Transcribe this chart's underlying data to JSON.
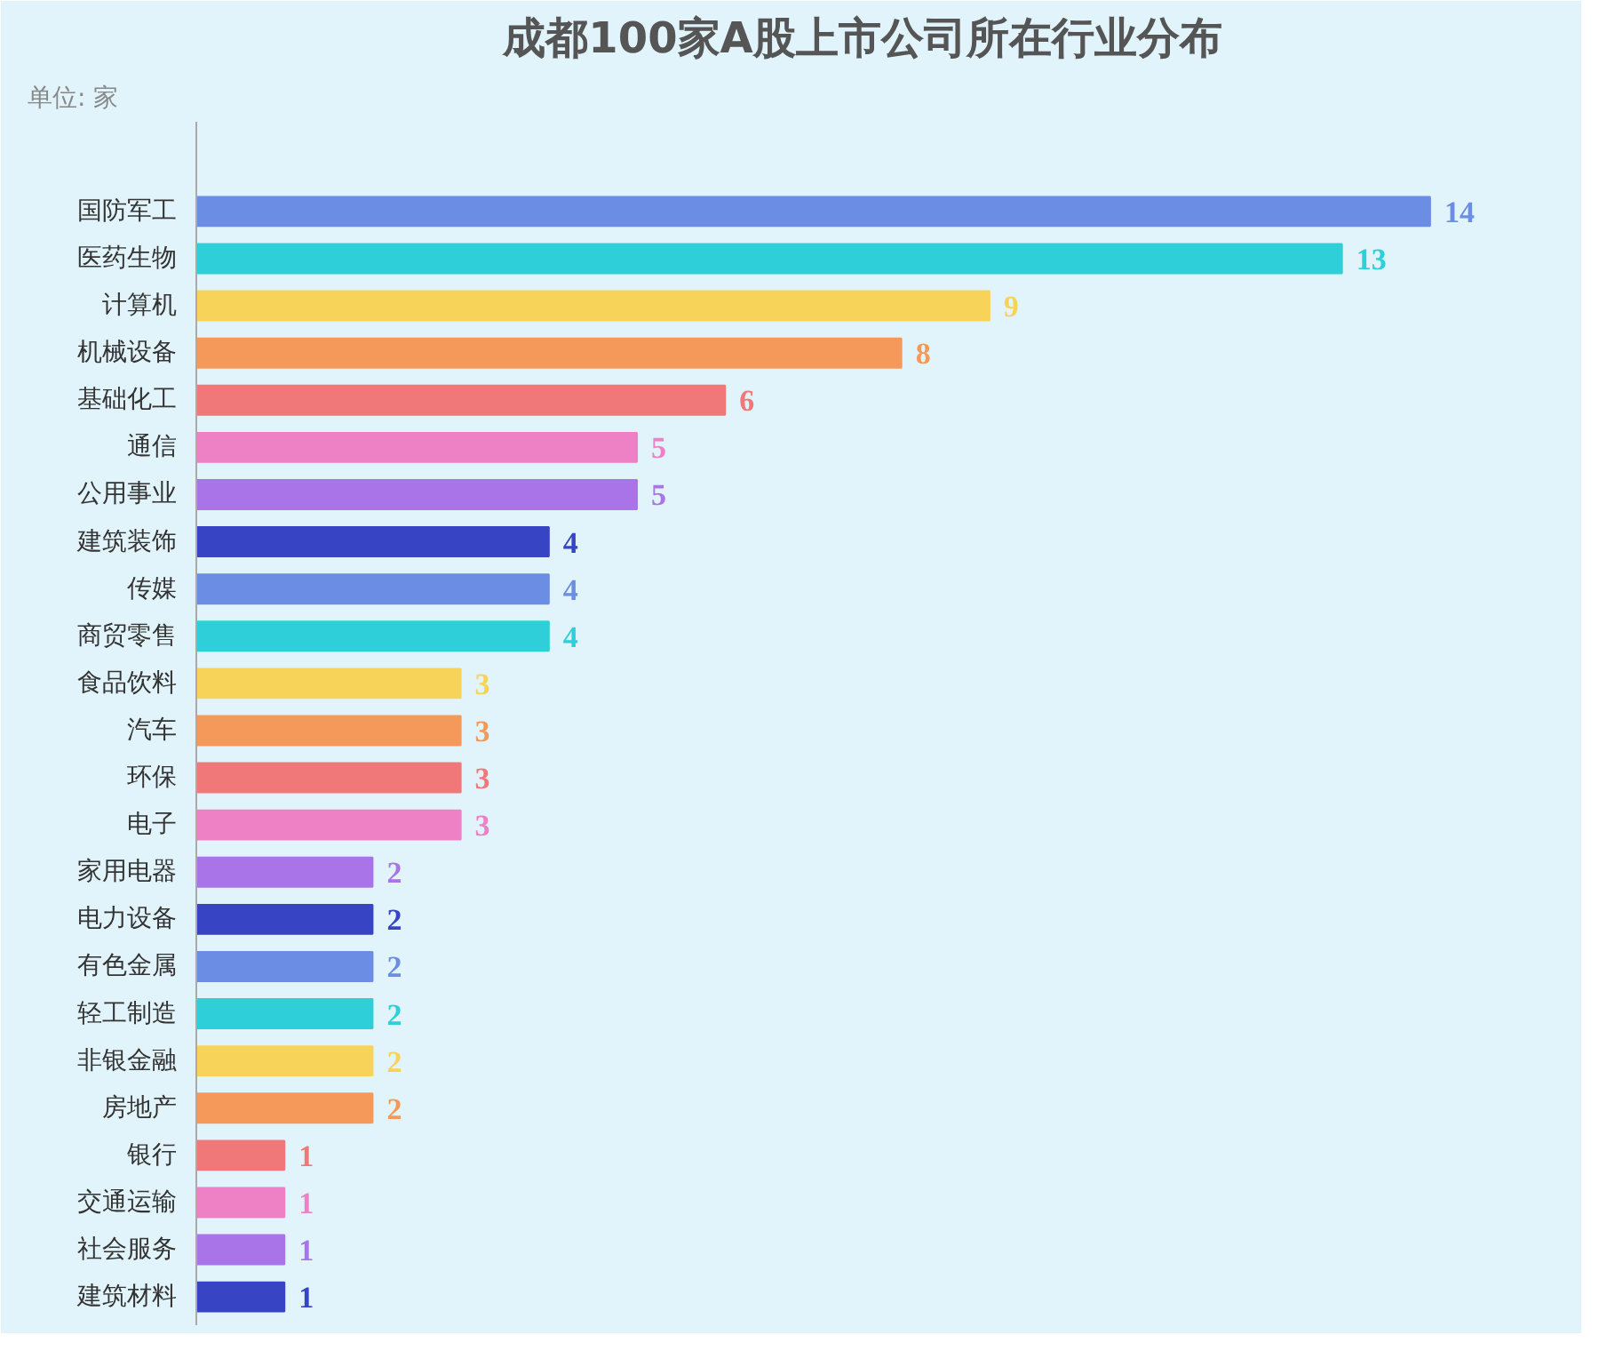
{
  "chart_data": {
    "type": "bar",
    "orientation": "horizontal",
    "title": "成都100家A股上市公司所在行业分布",
    "annotations": [
      "单位: 家"
    ],
    "categories": [
      "国防军工",
      "医药生物",
      "计算机",
      "机械设备",
      "基础化工",
      "通信",
      "公用事业",
      "建筑装饰",
      "传媒",
      "商贸零售",
      "食品饮料",
      "汽车",
      "环保",
      "电子",
      "家用电器",
      "电力设备",
      "有色金属",
      "轻工制造",
      "非银金融",
      "房地产",
      "银行",
      "交通运输",
      "社会服务",
      "建筑材料"
    ],
    "values": [
      14,
      13,
      9,
      8,
      6,
      5,
      5,
      4,
      4,
      4,
      3,
      3,
      3,
      3,
      2,
      2,
      2,
      2,
      2,
      2,
      1,
      1,
      1,
      1
    ],
    "colors": [
      "#6b8de3",
      "#2ecfd8",
      "#f7d35a",
      "#f5995a",
      "#f07878",
      "#ee80c6",
      "#a874e8",
      "#3745c4",
      "#6b8de3",
      "#2ecfd8",
      "#f7d35a",
      "#f5995a",
      "#f07878",
      "#ee80c6",
      "#a874e8",
      "#3745c4",
      "#6b8de3",
      "#2ecfd8",
      "#f7d35a",
      "#f5995a",
      "#f07878",
      "#ee80c6",
      "#a874e8",
      "#3745c4"
    ],
    "data_labels": true,
    "grid": false
  }
}
